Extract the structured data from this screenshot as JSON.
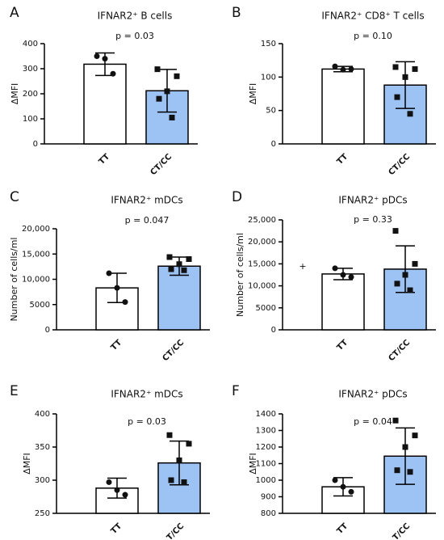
{
  "chart_data": [
    {
      "type": "bar",
      "panel": "A",
      "title": "IFNAR2⁺ B cells",
      "subtitle": "p = 0.03",
      "ylabel": "ΔMFI",
      "categories": [
        "TT",
        "CT/CC"
      ],
      "colors": [
        "#ffffff",
        "#9dc3f5"
      ],
      "markers": [
        "circle",
        "square"
      ],
      "values": [
        318,
        212
      ],
      "errors": [
        45,
        85
      ],
      "points": [
        [
          350,
          340,
          280
        ],
        [
          298,
          270,
          210,
          180,
          105
        ]
      ],
      "ylim": [
        0,
        400
      ],
      "yticks": [
        0,
        100,
        200,
        300,
        400
      ]
    },
    {
      "type": "bar",
      "panel": "B",
      "title": "IFNAR2⁺ CD8⁺ T cells",
      "subtitle": "p = 0.10",
      "ylabel": "ΔMFI",
      "categories": [
        "TT",
        "CT/CC"
      ],
      "colors": [
        "#ffffff",
        "#9dc3f5"
      ],
      "markers": [
        "circle",
        "square"
      ],
      "values": [
        112,
        88
      ],
      "errors": [
        4,
        35
      ],
      "points": [
        [
          116,
          111,
          112
        ],
        [
          115,
          112,
          100,
          70,
          45
        ]
      ],
      "ylim": [
        0,
        150
      ],
      "yticks": [
        0,
        50,
        100,
        150
      ]
    },
    {
      "type": "bar",
      "panel": "C",
      "title": "IFNAR2⁺ mDCs",
      "subtitle": "p = 0.047",
      "ylabel": "Number of cells/ml",
      "categories": [
        "TT",
        "CT/CC"
      ],
      "colors": [
        "#ffffff",
        "#9dc3f5"
      ],
      "markers": [
        "circle",
        "square"
      ],
      "values": [
        8300,
        12600
      ],
      "errors": [
        2900,
        1800
      ],
      "points": [
        [
          11200,
          8300,
          5500
        ],
        [
          14400,
          14000,
          13000,
          12000,
          11800
        ]
      ],
      "ylim": [
        0,
        20000
      ],
      "yticks": [
        0,
        5000,
        {
          "value": 10000,
          "label": "10,000"
        },
        {
          "value": 15000,
          "label": "15,000"
        },
        {
          "value": 20000,
          "label": "20,000"
        }
      ]
    },
    {
      "type": "bar",
      "panel": "D",
      "title": "IFNAR2⁺ pDCs",
      "subtitle": "p = 0.33",
      "ylabel": "Number of cells/ml",
      "annotation": "+",
      "categories": [
        "TT",
        "CT/CC"
      ],
      "colors": [
        "#ffffff",
        "#9dc3f5"
      ],
      "markers": [
        "circle",
        "square"
      ],
      "values": [
        12700,
        13800
      ],
      "errors": [
        1300,
        5300
      ],
      "points": [
        [
          14000,
          12500,
          12000
        ],
        [
          22500,
          15000,
          12500,
          10500,
          9000
        ]
      ],
      "ylim": [
        0,
        25000
      ],
      "yticks": [
        0,
        5000,
        {
          "value": 10000,
          "label": "10,000"
        },
        {
          "value": 15000,
          "label": "15,000"
        },
        {
          "value": 20000,
          "label": "20,000"
        },
        {
          "value": 25000,
          "label": "25,000"
        }
      ]
    },
    {
      "type": "bar",
      "panel": "E",
      "title": "IFNAR2⁺ mDCs",
      "subtitle": "p = 0.03",
      "ylabel": "ΔMFI",
      "categories": [
        "TT",
        "T/CC"
      ],
      "colors": [
        "#ffffff",
        "#9dc3f5"
      ],
      "markers": [
        "circle",
        "square"
      ],
      "values": [
        288,
        326
      ],
      "errors": [
        15,
        33
      ],
      "points": [
        [
          297,
          285,
          278
        ],
        [
          368,
          355,
          330,
          300,
          297
        ]
      ],
      "ylim": [
        250,
        400
      ],
      "yticks": [
        250,
        300,
        350,
        400
      ]
    },
    {
      "type": "bar",
      "panel": "F",
      "title": "IFNAR2⁺ pDCs",
      "subtitle": "p = 0.04",
      "ylabel": "ΔMFI",
      "categories": [
        "TT",
        "T/CC"
      ],
      "colors": [
        "#ffffff",
        "#9dc3f5"
      ],
      "markers": [
        "circle",
        "square"
      ],
      "values": [
        960,
        1145
      ],
      "errors": [
        55,
        170
      ],
      "points": [
        [
          1000,
          960,
          930
        ],
        [
          1360,
          1270,
          1200,
          1060,
          1050
        ]
      ],
      "ylim": [
        800,
        1400
      ],
      "yticks": [
        800,
        900,
        1000,
        1100,
        1200,
        1300,
        1400
      ]
    }
  ]
}
